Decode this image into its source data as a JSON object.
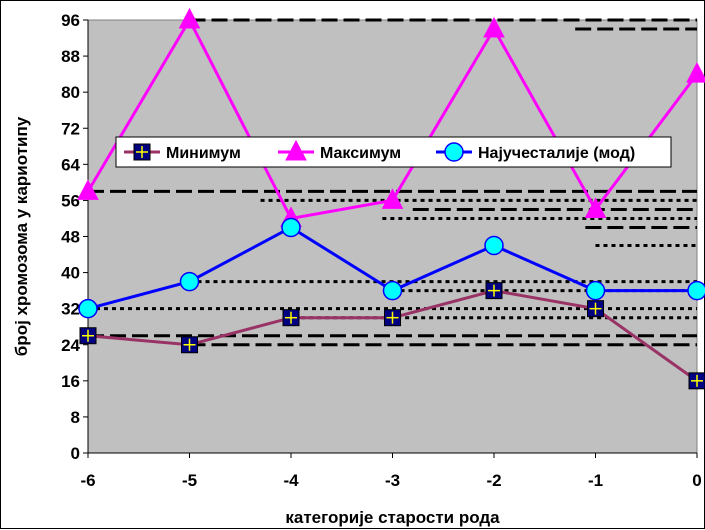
{
  "chart_data": {
    "type": "line",
    "x": [
      -6,
      -5,
      -4,
      -3,
      -2,
      -1,
      0
    ],
    "xlabel": "категорије старости рода",
    "ylabel": "број хромозома у кариотипу",
    "xlim": [
      -6,
      0
    ],
    "ylim": [
      0,
      96
    ],
    "yticks": [
      0,
      8,
      16,
      24,
      32,
      40,
      48,
      56,
      64,
      72,
      80,
      88,
      96
    ],
    "xticks": [
      -6,
      -5,
      -4,
      -3,
      -2,
      -1,
      0
    ],
    "grid": false,
    "legend_position": "inside-top",
    "series": [
      {
        "name": "Минимум",
        "values": [
          26,
          24,
          30,
          30,
          36,
          32,
          16
        ],
        "color": "#993366",
        "marker": "square-plus",
        "marker_fill": "#000080"
      },
      {
        "name": "Максимум",
        "values": [
          58,
          96,
          52,
          56,
          94,
          54,
          84
        ],
        "color": "#ff00ff",
        "marker": "triangle",
        "marker_fill": "#ff00ff"
      },
      {
        "name": "Најучесталије (мод)",
        "values": [
          32,
          38,
          50,
          36,
          46,
          36,
          36
        ],
        "color": "#0000ff",
        "marker": "circle",
        "marker_fill": "#00ffff"
      }
    ],
    "plot_background": "#c0c0c0"
  }
}
